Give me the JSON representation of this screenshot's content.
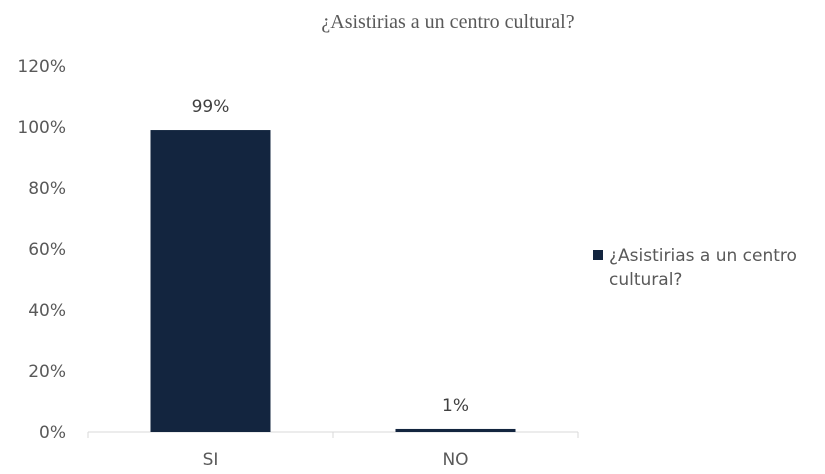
{
  "chart_data": {
    "type": "bar",
    "title": "¿Asistirias a un centro cultural?",
    "xlabel": "",
    "ylabel": "",
    "categories": [
      "SI",
      "NO"
    ],
    "series": [
      {
        "name": "¿Asistirias a un centro cultural?",
        "values": [
          99,
          1
        ],
        "labels": [
          "99%",
          "1%"
        ],
        "color": "#13253F"
      }
    ],
    "ylim": [
      0,
      120
    ],
    "yticks": [
      0,
      20,
      40,
      60,
      80,
      100,
      120
    ],
    "ytick_labels": [
      "0%",
      "20%",
      "40%",
      "60%",
      "80%",
      "100%",
      "120%"
    ],
    "grid": false,
    "legend": {
      "position": "right",
      "lines": [
        "¿Asistirias a un centro",
        "cultural?"
      ]
    }
  }
}
